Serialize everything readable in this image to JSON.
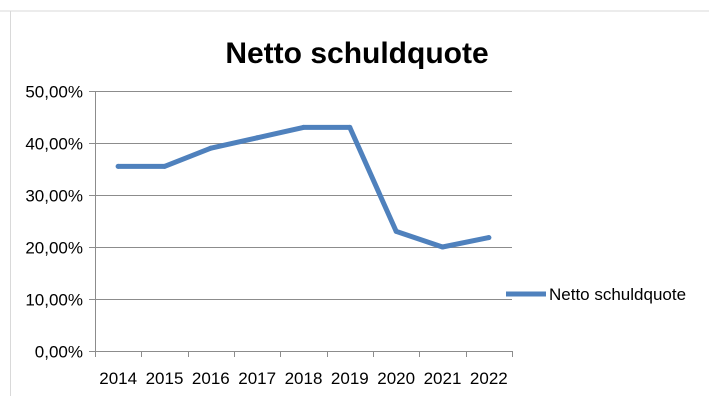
{
  "chart_data": {
    "type": "line",
    "title": "Netto schuldquote",
    "xlabel": "",
    "ylabel": "",
    "categories": [
      "2014",
      "2015",
      "2016",
      "2017",
      "2018",
      "2019",
      "2020",
      "2021",
      "2022"
    ],
    "series": [
      {
        "name": "Netto schuldquote",
        "values": [
          35.5,
          35.5,
          39.0,
          41.0,
          43.0,
          43.0,
          23.0,
          20.0,
          21.8
        ],
        "color": "#4f81bd"
      }
    ],
    "ylim": [
      0,
      50
    ],
    "yticks": [
      0,
      10,
      20,
      30,
      40,
      50
    ],
    "ytick_labels": [
      "0,00%",
      "10,00%",
      "20,00%",
      "30,00%",
      "40,00%",
      "50,00%"
    ],
    "grid": true,
    "legend": "right"
  }
}
